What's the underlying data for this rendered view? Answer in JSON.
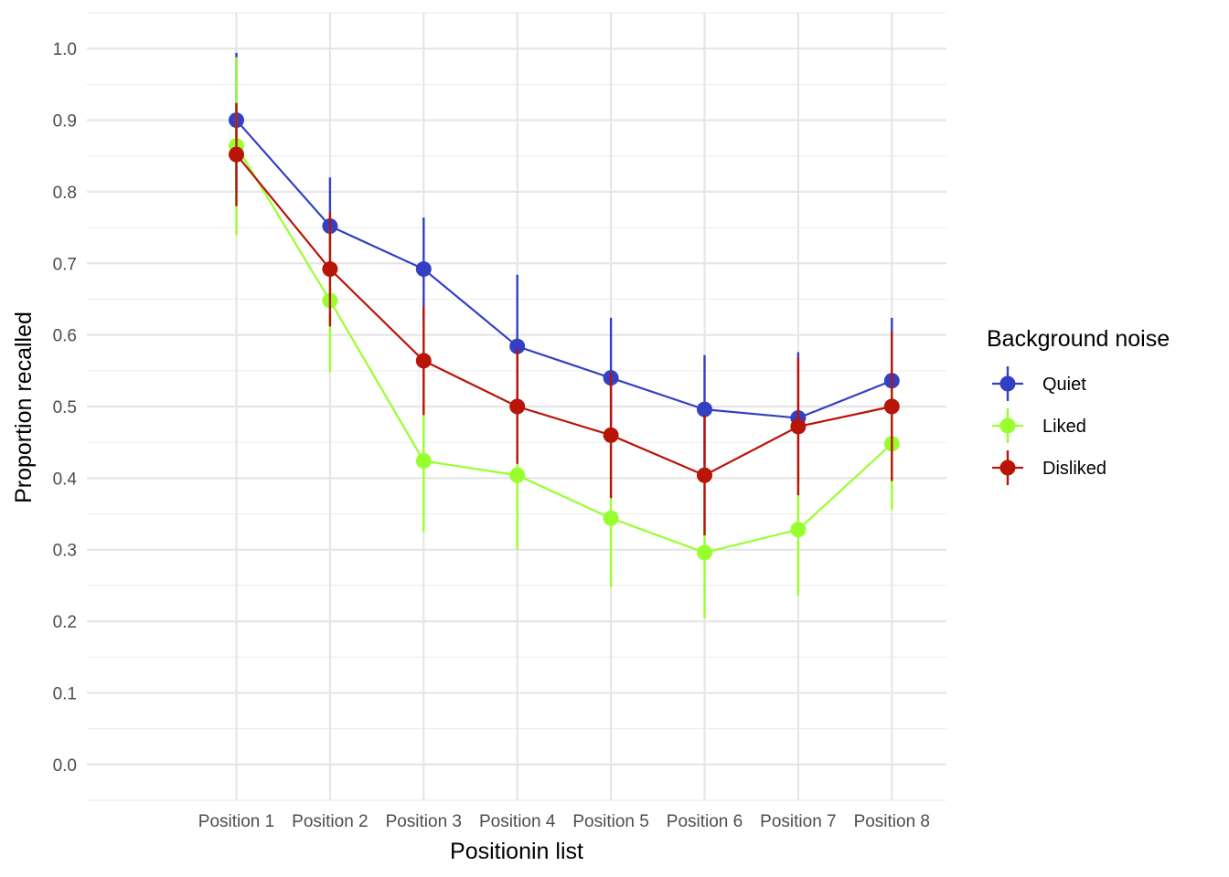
{
  "chart_data": {
    "type": "line",
    "xlabel": "Positionin list",
    "ylabel": "Proportion recalled",
    "categories": [
      "Position 1",
      "Position 2",
      "Position 3",
      "Position 4",
      "Position 5",
      "Position 6",
      "Position 7",
      "Position 8"
    ],
    "ylim": [
      -0.05,
      1.05
    ],
    "yticks": [
      "0.0",
      "0.1",
      "0.2",
      "0.3",
      "0.4",
      "0.5",
      "0.6",
      "0.7",
      "0.8",
      "0.9",
      "1.0"
    ],
    "grid": true,
    "legend": {
      "title": "Background noise",
      "position": "right"
    },
    "series": [
      {
        "name": "Quiet",
        "color": "#3340c4",
        "values": [
          0.9,
          0.752,
          0.692,
          0.584,
          0.54,
          0.496,
          0.484,
          0.536
        ],
        "upper": [
          0.994,
          0.82,
          0.764,
          0.684,
          0.624,
          0.572,
          0.576,
          0.624
        ],
        "lower": [
          0.8,
          0.684,
          0.62,
          0.484,
          0.456,
          0.42,
          0.392,
          0.448
        ]
      },
      {
        "name": "Liked",
        "color": "#98ff2e",
        "values": [
          0.864,
          0.648,
          0.424,
          0.404,
          0.344,
          0.296,
          0.328,
          0.448
        ],
        "upper": [
          0.988,
          0.748,
          0.524,
          0.504,
          0.44,
          0.388,
          0.42,
          0.54
        ],
        "lower": [
          0.74,
          0.548,
          0.324,
          0.3,
          0.248,
          0.204,
          0.236,
          0.356
        ]
      },
      {
        "name": "Disliked",
        "color": "#b81408",
        "values": [
          0.852,
          0.692,
          0.564,
          0.5,
          0.46,
          0.404,
          0.472,
          0.5
        ],
        "upper": [
          0.924,
          0.772,
          0.64,
          0.58,
          0.548,
          0.488,
          0.568,
          0.604
        ],
        "lower": [
          0.78,
          0.612,
          0.488,
          0.42,
          0.372,
          0.32,
          0.376,
          0.396
        ]
      }
    ]
  }
}
